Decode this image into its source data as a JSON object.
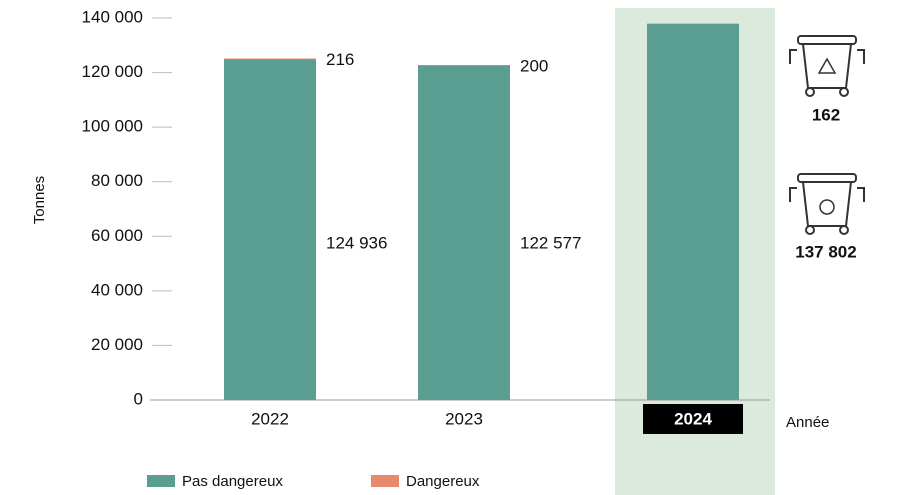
{
  "chart_data": {
    "type": "stacked-bar",
    "y_label": "Tonnes",
    "x_label": "Année",
    "categories": [
      "2022",
      "2023",
      "2024"
    ],
    "series": [
      {
        "name": "Pas dangereux",
        "color": "#5a9e92",
        "values": [
          124936,
          122577,
          137802
        ],
        "value_labels": [
          "124 936",
          "122 577",
          "137 802"
        ]
      },
      {
        "name": "Dangereux",
        "color": "#e8896b",
        "values": [
          216,
          200,
          162
        ]
      }
    ],
    "ylim": [
      0,
      140000
    ],
    "yticks": [
      0,
      {
        "value": 20000,
        "label": "20 000"
      },
      {
        "value": 40000,
        "label": "40 000"
      },
      {
        "value": 60000,
        "label": "60 000"
      },
      {
        "value": 80000,
        "label": "80 000"
      },
      {
        "value": 100000,
        "label": "100 000"
      },
      {
        "value": 120000,
        "label": "120 000"
      },
      {
        "value": 140000,
        "label": "140 000"
      }
    ]
  }
}
